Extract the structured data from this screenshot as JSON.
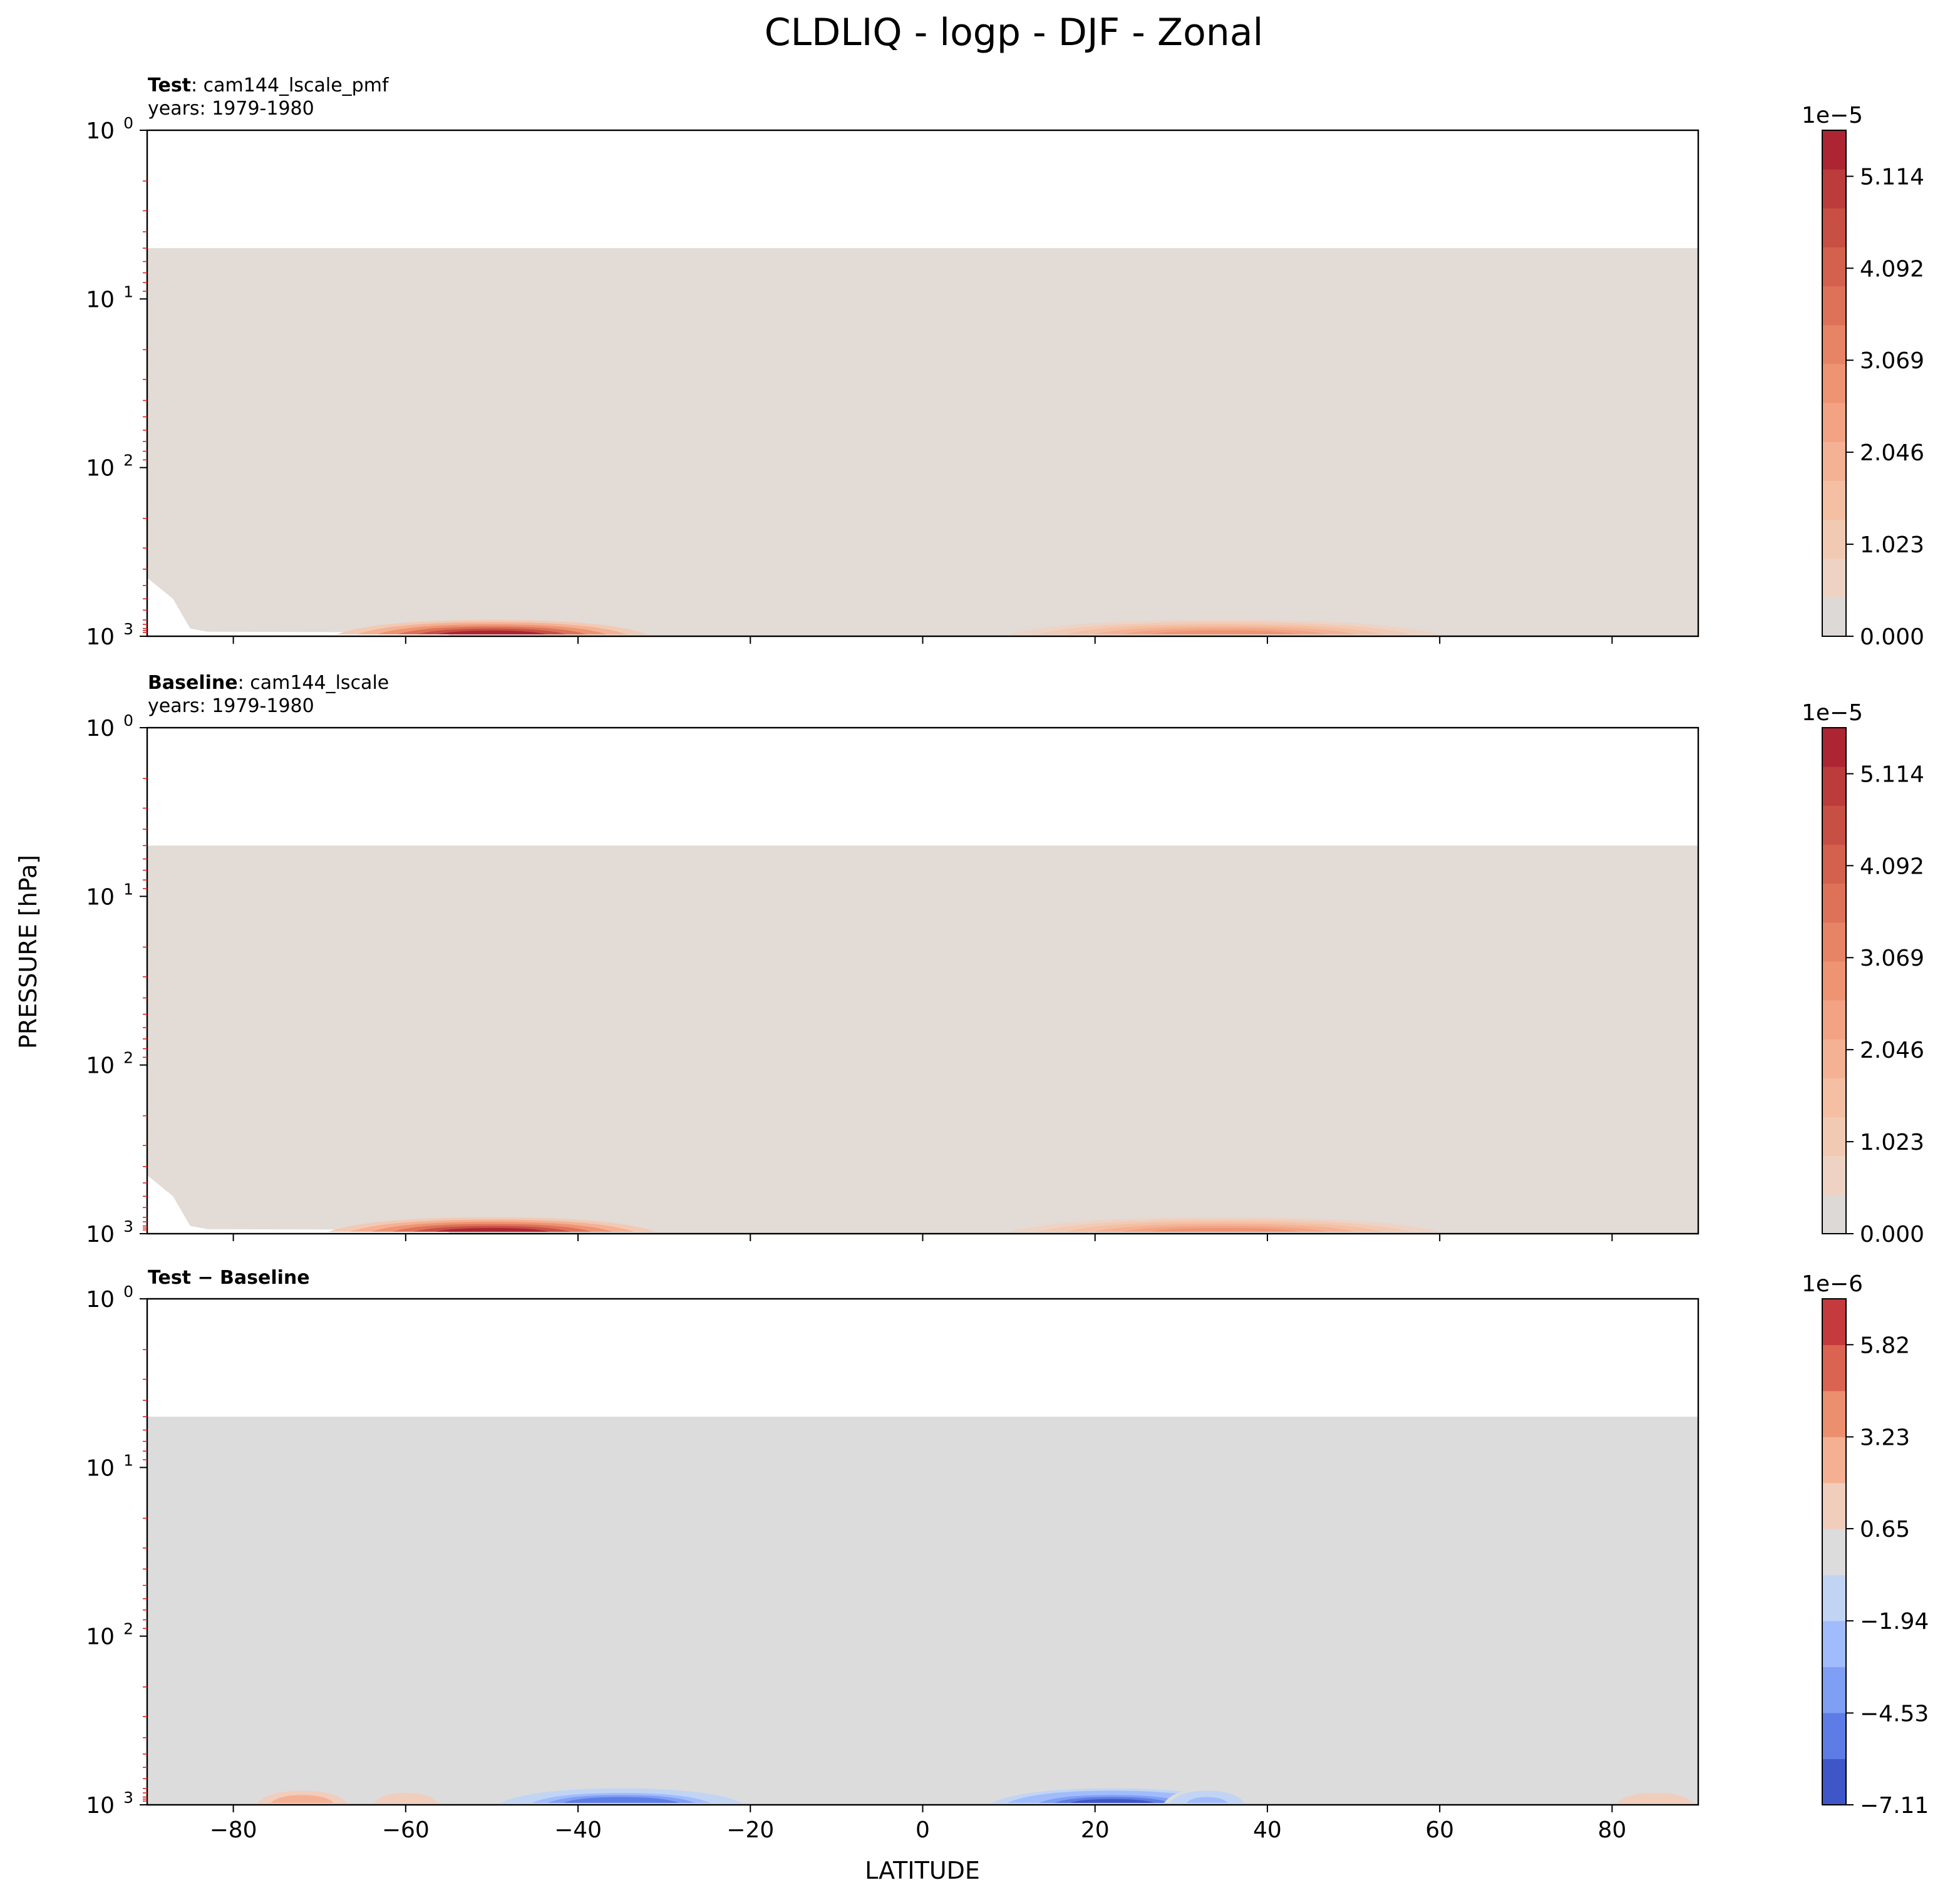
{
  "figure": {
    "title": "CLDLIQ - logp - DJF - Zonal",
    "ylabel": "PRESSURE [hPa]",
    "xlabel": "LATITUDE"
  },
  "chart_data": [
    {
      "type": "heatmap",
      "label_bold": "Test",
      "label_rest": ": cam144_lscale_pmf",
      "years": "years: 1979-1980",
      "x_ticks": [
        -80,
        -60,
        -40,
        -20,
        0,
        20,
        40,
        60,
        80
      ],
      "xlim": [
        -90,
        90
      ],
      "y_scale": "log",
      "ylim": [
        1000,
        1
      ],
      "y_tick_values": [
        1,
        10,
        100,
        1000
      ],
      "y_tick_labels": [
        "10^0",
        "10^1",
        "10^2",
        "10^3"
      ],
      "colorbar": {
        "exponent": "1e−5",
        "ticks": [
          "0.000",
          "1.023",
          "2.046",
          "3.069",
          "4.092",
          "5.114"
        ],
        "tick_values": [
          0,
          1.023,
          2.046,
          3.069,
          4.092,
          5.114
        ],
        "levels": 15,
        "vmax": 5.626,
        "colors": [
          "#dcd9d6",
          "#eed3c5",
          "#f2cab4",
          "#f4bfa2",
          "#f5b193",
          "#f3a383",
          "#ee9473",
          "#e78465",
          "#de7259",
          "#d3614d",
          "#c84f43",
          "#bb3c3a",
          "#ad2532"
        ]
      },
      "background_color": "#e2dbd6",
      "top_pressure": 5,
      "bands": [
        {
          "center_lat": -50,
          "width": 36,
          "amplitude": 5.3
        },
        {
          "center_lat": 35,
          "width": 50,
          "amplitude": 2.9
        }
      ]
    },
    {
      "type": "heatmap",
      "label_bold": "Baseline",
      "label_rest": ": cam144_lscale",
      "years": "years: 1979-1980",
      "x_ticks": [
        -80,
        -60,
        -40,
        -20,
        0,
        20,
        40,
        60,
        80
      ],
      "xlim": [
        -90,
        90
      ],
      "y_scale": "log",
      "ylim": [
        1000,
        1
      ],
      "y_tick_values": [
        1,
        10,
        100,
        1000
      ],
      "y_tick_labels": [
        "10^0",
        "10^1",
        "10^2",
        "10^3"
      ],
      "colorbar": {
        "exponent": "1e−5",
        "ticks": [
          "0.000",
          "1.023",
          "2.046",
          "3.069",
          "4.092",
          "5.114"
        ],
        "tick_values": [
          0,
          1.023,
          2.046,
          3.069,
          4.092,
          5.114
        ],
        "levels": 15,
        "vmax": 5.626,
        "colors": [
          "#dcd9d6",
          "#eed3c5",
          "#f2cab4",
          "#f4bfa2",
          "#f5b193",
          "#f3a383",
          "#ee9473",
          "#e78465",
          "#de7259",
          "#d3614d",
          "#c84f43",
          "#bb3c3a",
          "#ad2532"
        ]
      },
      "background_color": "#e2dbd6",
      "top_pressure": 5,
      "bands": [
        {
          "center_lat": -50,
          "width": 38,
          "amplitude": 5.2
        },
        {
          "center_lat": 35,
          "width": 50,
          "amplitude": 3.0
        }
      ]
    },
    {
      "type": "heatmap",
      "label_bold": "Test − Baseline",
      "label_rest": "",
      "years": "",
      "x_ticks": [
        -80,
        -60,
        -40,
        -20,
        0,
        20,
        40,
        60,
        80
      ],
      "xlim": [
        -90,
        90
      ],
      "y_scale": "log",
      "ylim": [
        1000,
        1
      ],
      "y_tick_values": [
        1,
        10,
        100,
        1000
      ],
      "y_tick_labels": [
        "10^0",
        "10^1",
        "10^2",
        "10^3"
      ],
      "colorbar": {
        "exponent": "1e−6",
        "ticks": [
          "−7.11",
          "−4.53",
          "−1.94",
          "0.65",
          "3.23",
          "5.82"
        ],
        "tick_values": [
          -7.11,
          -4.53,
          -1.94,
          0.65,
          3.23,
          5.82
        ],
        "levels": 11,
        "vmin": -7.11,
        "vmax": 7.11,
        "colors": [
          "#3f56c9",
          "#5d7ce6",
          "#7f9ff4",
          "#a1bcfd",
          "#c1d4f4",
          "#dcdcdc",
          "#f1cdbb",
          "#f5b093",
          "#ec8f6e",
          "#db6351",
          "#c43a3d"
        ]
      },
      "background_color": "#dcdcdc",
      "top_pressure": 5,
      "bands": [
        {
          "center_lat": -35,
          "width": 28,
          "amplitude": -5.5
        },
        {
          "center_lat": 22,
          "width": 28,
          "amplitude": -6.0
        },
        {
          "center_lat": 33,
          "width": 10,
          "amplitude": -2.5
        },
        {
          "center_lat": -72,
          "width": 12,
          "amplitude": 3.0
        },
        {
          "center_lat": 85,
          "width": 12,
          "amplitude": 1.8
        },
        {
          "center_lat": -60,
          "width": 10,
          "amplitude": 1.5
        }
      ]
    }
  ]
}
